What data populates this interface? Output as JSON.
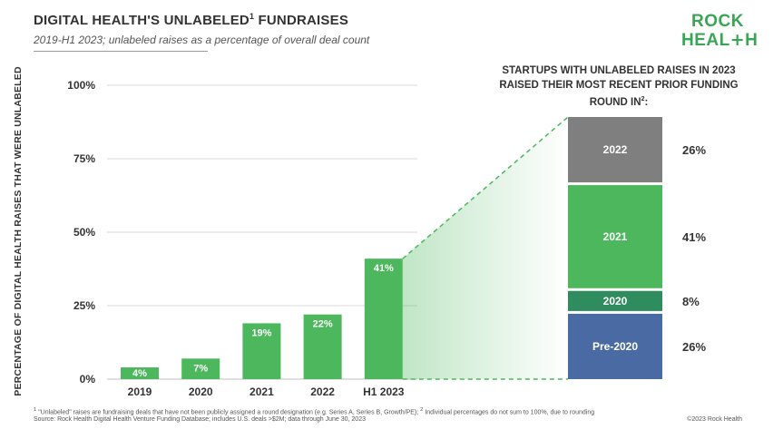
{
  "header": {
    "title": "DIGITAL HEALTH'S UNLABELED",
    "title_sup": "1",
    "title_end": " FUNDRAISES",
    "subtitle": "2019-H1 2023; unlabeled raises as a percentage of overall deal count"
  },
  "logo": {
    "line1": "ROCK",
    "line2_a": "HEAL",
    "line2_plus": "+",
    "line2_b": "H"
  },
  "colors": {
    "green": "#4cb75c",
    "gray": "#7f7f7f",
    "teal": "#2e8c5f",
    "blue": "#4a6aa3",
    "gridline": "#d9d9d9"
  },
  "chart_data": [
    {
      "type": "bar",
      "ylabel": "PERCENTAGE OF DIGITAL HEALTH RAISES THAT WERE UNLABELED",
      "xlabel": "",
      "categories": [
        "2019",
        "2020",
        "2021",
        "2022",
        "H1 2023"
      ],
      "values": [
        4,
        7,
        19,
        22,
        41
      ],
      "data_labels": [
        "4%",
        "7%",
        "19%",
        "22%",
        "41%"
      ],
      "ylim": [
        0,
        100
      ],
      "yticks": [
        0,
        25,
        50,
        75,
        100
      ],
      "ytick_labels": [
        "0%",
        "25%",
        "50%",
        "75%",
        "100%"
      ],
      "grid": true
    },
    {
      "type": "bar",
      "stacked": true,
      "title": "STARTUPS WITH UNLABELED RAISES IN 2023 RAISED THEIR MOST RECENT PRIOR FUNDING ROUND IN",
      "title_sup": "2",
      "title_end": ":",
      "segments": [
        {
          "name": "Pre-2020",
          "value": 26,
          "label": "26%",
          "color": "#4a6aa3"
        },
        {
          "name": "2020",
          "value": 8,
          "label": "8%",
          "color": "#2e8c5f"
        },
        {
          "name": "2021",
          "value": 41,
          "label": "41%",
          "color": "#4cb75c"
        },
        {
          "name": "2022",
          "value": 26,
          "label": "26%",
          "color": "#7f7f7f"
        }
      ]
    }
  ],
  "footer": {
    "footnote_sup1": "1",
    "footnote_text1": " \"Unlabeled\" raises are fundraising deals that have not been publicly assigned a round designation (e.g. Series A, Series B, Growth/PE); ",
    "footnote_sup2": "2",
    "footnote_text2": " Individual percentages do not sum to 100%, due to rounding",
    "source": "Source: Rock Health Digital Health Venture Funding Database; includes U.S. deals >$2M; data through June 30, 2023",
    "copyright": "©2023 Rock Health"
  }
}
